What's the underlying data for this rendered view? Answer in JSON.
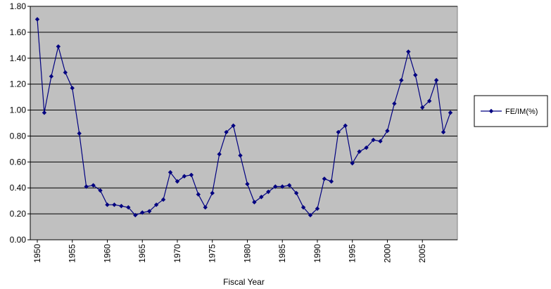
{
  "chart_data": {
    "type": "line",
    "title": "",
    "xlabel": "Fiscal Year",
    "ylabel": "",
    "xlim": [
      1950,
      2009
    ],
    "ylim": [
      0,
      1.8
    ],
    "y_ticks": [
      "0.00",
      "0.20",
      "0.40",
      "0.60",
      "0.80",
      "1.00",
      "1.20",
      "1.40",
      "1.60",
      "1.80"
    ],
    "x_ticks": [
      "1950",
      "1955",
      "1960",
      "1965",
      "1970",
      "1975",
      "1980",
      "1985",
      "1990",
      "1995",
      "2000",
      "2005"
    ],
    "grid": "horizontal",
    "legend_position": "right",
    "colors": {
      "series": "#000080",
      "plot_bg": "#c0c0c0",
      "grid": "#000000"
    },
    "series": [
      {
        "name": "FE/IM(%)",
        "marker": "diamond",
        "x": [
          1950,
          1951,
          1952,
          1953,
          1954,
          1955,
          1956,
          1957,
          1958,
          1959,
          1960,
          1961,
          1962,
          1963,
          1964,
          1965,
          1966,
          1967,
          1968,
          1969,
          1970,
          1971,
          1972,
          1973,
          1974,
          1975,
          1976,
          1977,
          1978,
          1979,
          1980,
          1981,
          1982,
          1983,
          1984,
          1985,
          1986,
          1987,
          1988,
          1989,
          1990,
          1991,
          1992,
          1993,
          1994,
          1995,
          1996,
          1997,
          1998,
          1999,
          2000,
          2001,
          2002,
          2003,
          2004,
          2005,
          2006,
          2007,
          2008,
          2009
        ],
        "values": [
          1.7,
          0.98,
          1.26,
          1.49,
          1.29,
          1.17,
          0.82,
          0.41,
          0.42,
          0.38,
          0.27,
          0.27,
          0.26,
          0.25,
          0.19,
          0.21,
          0.22,
          0.27,
          0.31,
          0.52,
          0.45,
          0.49,
          0.5,
          0.35,
          0.25,
          0.36,
          0.66,
          0.83,
          0.88,
          0.65,
          0.43,
          0.29,
          0.33,
          0.37,
          0.41,
          0.41,
          0.42,
          0.36,
          0.25,
          0.19,
          0.24,
          0.47,
          0.45,
          0.83,
          0.88,
          0.59,
          0.68,
          0.71,
          0.77,
          0.76,
          0.84,
          1.05,
          1.23,
          1.45,
          1.27,
          1.02,
          1.07,
          1.23,
          0.83,
          0.98
        ]
      }
    ]
  }
}
